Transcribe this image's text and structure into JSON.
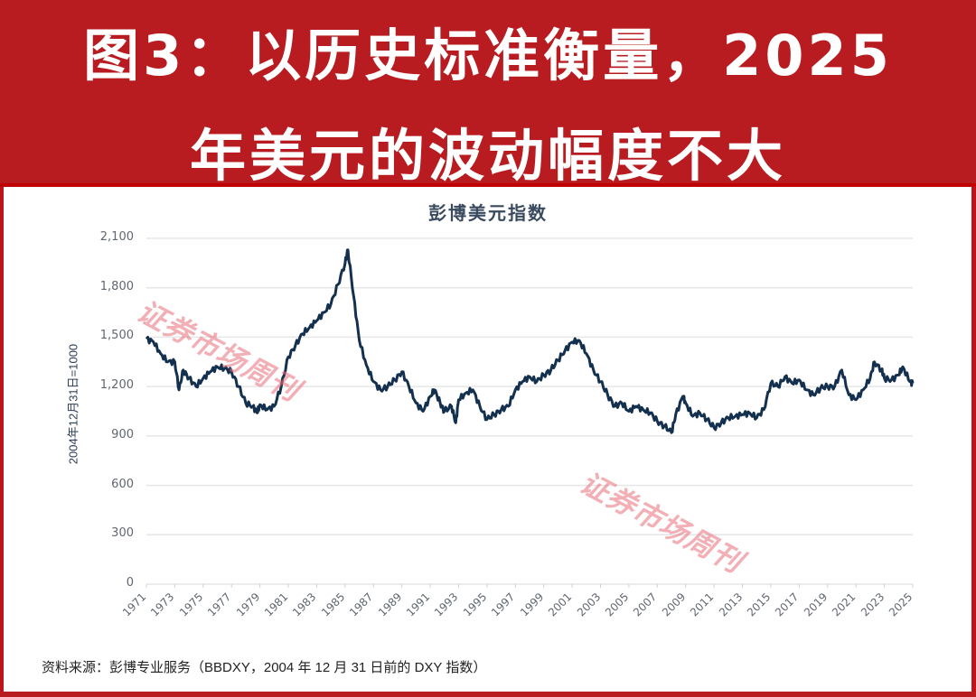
{
  "header": {
    "title_line1": "图3：以历史标准衡量，2025",
    "title_line2": "年美元的波动幅度不大"
  },
  "chart": {
    "title": "彭博美元指数",
    "y_axis_label": "2004年12月31日=1000",
    "y_ticks": [
      "2,100",
      "1,800",
      "1,500",
      "1,200",
      "900",
      "600",
      "300",
      "0"
    ],
    "x_ticks": [
      "1971",
      "1973",
      "1975",
      "1977",
      "1979",
      "1981",
      "1983",
      "1985",
      "1987",
      "1989",
      "1991",
      "1993",
      "1995",
      "1997",
      "1999",
      "2001",
      "2003",
      "2005",
      "2007",
      "2009",
      "2011",
      "2013",
      "2015",
      "2017",
      "2019",
      "2021",
      "2023",
      "2025"
    ],
    "line_color": "#14304f",
    "grid_color": "#e6e6e6"
  },
  "watermarks": [
    "证券市场周刊",
    "证券市场周刊"
  ],
  "source": "资料来源：彭博专业服务（BBDXY，2004 年 12 月 31 日前的 DXY 指数）",
  "colors": {
    "title_band": "#b81c21",
    "border": "#c0141b",
    "title_text": "#ffffff"
  },
  "chart_data": {
    "type": "line",
    "title": "彭博美元指数",
    "xlabel": "",
    "ylabel": "2004年12月31日=1000",
    "ylim": [
      0,
      2100
    ],
    "xlim": [
      1971,
      2025
    ],
    "y_ticks": [
      0,
      300,
      600,
      900,
      1200,
      1500,
      1800,
      2100
    ],
    "grid": true,
    "legend": null,
    "series": [
      {
        "name": "彭博美元指数",
        "x": [
          1971.0,
          1971.5,
          1972.0,
          1972.5,
          1973.0,
          1973.3,
          1973.6,
          1974.0,
          1974.5,
          1975.0,
          1975.5,
          1976.0,
          1976.5,
          1977.0,
          1977.5,
          1978.0,
          1978.5,
          1978.8,
          1979.0,
          1979.5,
          1980.0,
          1980.5,
          1981.0,
          1981.5,
          1982.0,
          1982.5,
          1983.0,
          1983.5,
          1984.0,
          1984.5,
          1985.0,
          1985.2,
          1985.6,
          1986.0,
          1986.5,
          1987.0,
          1987.5,
          1988.0,
          1988.5,
          1989.0,
          1989.5,
          1990.0,
          1990.5,
          1991.0,
          1991.3,
          1991.7,
          1992.0,
          1992.5,
          1992.8,
          1993.0,
          1993.5,
          1994.0,
          1994.5,
          1995.0,
          1995.5,
          1996.0,
          1996.5,
          1997.0,
          1997.5,
          1998.0,
          1998.5,
          1999.0,
          1999.5,
          2000.0,
          2000.5,
          2001.0,
          2001.5,
          2002.0,
          2002.5,
          2003.0,
          2003.5,
          2004.0,
          2004.5,
          2005.0,
          2005.5,
          2006.0,
          2006.5,
          2007.0,
          2007.5,
          2008.0,
          2008.3,
          2008.8,
          2009.0,
          2009.5,
          2010.0,
          2010.5,
          2011.0,
          2011.5,
          2012.0,
          2012.5,
          2013.0,
          2013.5,
          2014.0,
          2014.5,
          2015.0,
          2015.5,
          2016.0,
          2016.5,
          2017.0,
          2017.5,
          2018.0,
          2018.5,
          2019.0,
          2019.5,
          2020.0,
          2020.5,
          2021.0,
          2021.5,
          2022.0,
          2022.3,
          2022.8,
          2023.0,
          2023.5,
          2024.0,
          2024.3,
          2024.8,
          2025.0
        ],
        "values": [
          1490,
          1470,
          1400,
          1350,
          1350,
          1180,
          1300,
          1250,
          1200,
          1250,
          1290,
          1320,
          1310,
          1290,
          1200,
          1100,
          1080,
          1040,
          1090,
          1060,
          1080,
          1200,
          1380,
          1450,
          1520,
          1560,
          1600,
          1650,
          1700,
          1820,
          1950,
          2030,
          1750,
          1480,
          1330,
          1230,
          1180,
          1200,
          1240,
          1290,
          1200,
          1100,
          1050,
          1140,
          1180,
          1100,
          1050,
          1080,
          980,
          1120,
          1160,
          1180,
          1080,
          1000,
          1030,
          1060,
          1080,
          1180,
          1230,
          1260,
          1230,
          1270,
          1300,
          1360,
          1420,
          1470,
          1480,
          1400,
          1300,
          1230,
          1150,
          1080,
          1100,
          1050,
          1080,
          1060,
          1040,
          990,
          960,
          920,
          1030,
          1140,
          1100,
          1020,
          1040,
          1000,
          950,
          980,
          1010,
          1020,
          1030,
          1040,
          1010,
          1060,
          1220,
          1200,
          1260,
          1220,
          1240,
          1180,
          1150,
          1190,
          1200,
          1200,
          1300,
          1150,
          1120,
          1180,
          1250,
          1350,
          1300,
          1250,
          1240,
          1270,
          1320,
          1230,
          1220
        ]
      }
    ]
  }
}
